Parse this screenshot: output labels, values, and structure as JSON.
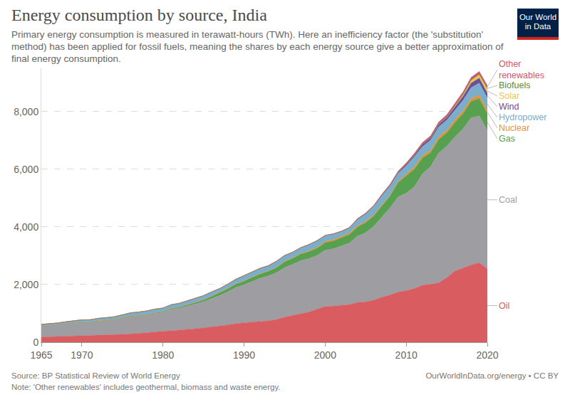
{
  "chart_data": {
    "type": "area",
    "title": "Energy consumption by source, India",
    "subtitle": "Primary energy consumption is measured in terawatt-hours (TWh). Here an inefficiency factor (the 'substitution' method) has been applied for fossil fuels, meaning the shares by each energy source give a better approximation of final energy consumption.",
    "source": "Source: BP Statistical Review of World Energy",
    "note": "Note: 'Other renewables' includes geothermal, biomass and waste energy.",
    "credit": "OurWorldInData.org/energy • CC BY",
    "logo": "Our World in Data",
    "stacked": true,
    "grid": true,
    "x": [
      1965,
      1966,
      1967,
      1968,
      1969,
      1970,
      1971,
      1972,
      1973,
      1974,
      1975,
      1976,
      1977,
      1978,
      1979,
      1980,
      1981,
      1982,
      1983,
      1984,
      1985,
      1986,
      1987,
      1988,
      1989,
      1990,
      1991,
      1992,
      1993,
      1994,
      1995,
      1996,
      1997,
      1998,
      1999,
      2000,
      2001,
      2002,
      2003,
      2004,
      2005,
      2006,
      2007,
      2008,
      2009,
      2010,
      2011,
      2012,
      2013,
      2014,
      2015,
      2016,
      2017,
      2018,
      2019,
      2020
    ],
    "xlim": [
      1965,
      2020
    ],
    "xticks": [
      1965,
      1970,
      1980,
      1990,
      2000,
      2010,
      2020
    ],
    "ylim": [
      0,
      9500
    ],
    "yticks": [
      0,
      {
        "value": 2000,
        "label": "2,000"
      },
      {
        "value": 4000,
        "label": "4,000"
      },
      {
        "value": 6000,
        "label": "6,000"
      },
      {
        "value": 8000,
        "label": "8,000"
      }
    ],
    "series": [
      {
        "name": "Oil",
        "color": "#d95c60",
        "values": [
          180,
          190,
          200,
          215,
          225,
          240,
          245,
          260,
          265,
          265,
          270,
          285,
          300,
          330,
          355,
          370,
          400,
          420,
          440,
          470,
          500,
          530,
          560,
          600,
          650,
          680,
          700,
          720,
          740,
          790,
          870,
          930,
          990,
          1050,
          1150,
          1240,
          1250,
          1280,
          1310,
          1380,
          1400,
          1460,
          1560,
          1640,
          1740,
          1790,
          1860,
          1980,
          2010,
          2060,
          2240,
          2470,
          2570,
          2680,
          2760,
          2540
        ]
      },
      {
        "name": "Coal",
        "color": "#9e9ea2",
        "values": [
          380,
          385,
          395,
          420,
          440,
          445,
          440,
          470,
          480,
          510,
          560,
          600,
          610,
          600,
          640,
          660,
          730,
          760,
          810,
          850,
          900,
          980,
          1060,
          1150,
          1250,
          1310,
          1410,
          1500,
          1560,
          1620,
          1720,
          1770,
          1840,
          1850,
          1860,
          1950,
          1990,
          2060,
          2130,
          2300,
          2400,
          2560,
          2780,
          3020,
          3300,
          3380,
          3530,
          3860,
          4080,
          4500,
          4560,
          4650,
          4830,
          5100,
          5090,
          4800
        ]
      },
      {
        "name": "Gas",
        "color": "#57a04f",
        "values": [
          3,
          4,
          5,
          6,
          7,
          8,
          9,
          10,
          11,
          12,
          14,
          15,
          18,
          19,
          20,
          22,
          28,
          35,
          45,
          55,
          65,
          80,
          95,
          105,
          115,
          125,
          135,
          150,
          160,
          175,
          200,
          210,
          230,
          240,
          250,
          265,
          270,
          280,
          300,
          320,
          350,
          360,
          390,
          410,
          500,
          600,
          610,
          550,
          480,
          470,
          460,
          500,
          530,
          570,
          600,
          590
        ]
      },
      {
        "name": "Nuclear",
        "color": "#e2933a",
        "values": [
          0,
          0,
          0,
          0,
          2,
          6,
          4,
          8,
          8,
          6,
          7,
          9,
          7,
          8,
          8,
          8,
          8,
          7,
          9,
          10,
          12,
          13,
          12,
          15,
          12,
          16,
          15,
          17,
          15,
          14,
          20,
          22,
          26,
          30,
          33,
          43,
          50,
          50,
          45,
          45,
          45,
          45,
          40,
          37,
          42,
          60,
          85,
          85,
          88,
          88,
          95,
          98,
          97,
          100,
          118,
          115
        ]
      },
      {
        "name": "Hydropower",
        "color": "#7aaecb",
        "values": [
          58,
          62,
          66,
          68,
          72,
          78,
          82,
          80,
          88,
          92,
          100,
          110,
          112,
          128,
          126,
          125,
          134,
          128,
          134,
          140,
          138,
          144,
          134,
          146,
          160,
          180,
          186,
          180,
          180,
          210,
          196,
          188,
          192,
          212,
          225,
          200,
          190,
          170,
          180,
          220,
          250,
          280,
          310,
          300,
          270,
          290,
          350,
          310,
          350,
          350,
          350,
          340,
          360,
          380,
          420,
          430
        ]
      },
      {
        "name": "Wind",
        "color": "#6b4d9c",
        "values": [
          0,
          0,
          0,
          0,
          0,
          0,
          0,
          0,
          0,
          0,
          0,
          0,
          0,
          0,
          0,
          0,
          0,
          0,
          0,
          0,
          0,
          0,
          0,
          0,
          0,
          0,
          0,
          0,
          0,
          1,
          2,
          3,
          3,
          3,
          4,
          4,
          5,
          5,
          7,
          10,
          16,
          20,
          30,
          35,
          42,
          50,
          60,
          75,
          75,
          85,
          85,
          110,
          140,
          155,
          170,
          160
        ]
      },
      {
        "name": "Solar",
        "color": "#e6c94a",
        "values": [
          0,
          0,
          0,
          0,
          0,
          0,
          0,
          0,
          0,
          0,
          0,
          0,
          0,
          0,
          0,
          0,
          0,
          0,
          0,
          0,
          0,
          0,
          0,
          0,
          0,
          0,
          0,
          0,
          0,
          0,
          0,
          0,
          0,
          0,
          0,
          0,
          0,
          0,
          0,
          0,
          0,
          0,
          0,
          0,
          0,
          0.3,
          1,
          5,
          9,
          12,
          18,
          35,
          60,
          100,
          125,
          160
        ]
      },
      {
        "name": "Biofuels",
        "color": "#5a8a3c",
        "values": [
          0,
          0,
          0,
          0,
          0,
          0,
          0,
          0,
          0,
          0,
          0,
          0,
          0,
          0,
          0,
          0,
          0,
          0,
          0,
          0,
          0,
          0,
          0,
          0,
          0,
          0,
          0,
          0,
          0,
          0,
          0,
          0,
          0,
          0,
          0,
          0,
          0,
          0.5,
          0.5,
          0.5,
          1,
          1,
          1,
          1,
          1,
          1,
          1,
          1,
          2,
          2,
          3,
          3,
          5,
          8,
          9,
          8
        ]
      },
      {
        "name": "Other renewables",
        "color": "#cc5870",
        "values": [
          0,
          0,
          0,
          0,
          0,
          0,
          0,
          0,
          0,
          0,
          0,
          0,
          0,
          0,
          0,
          0,
          0,
          0,
          0,
          0,
          0,
          0,
          0,
          0,
          0,
          1,
          1,
          2,
          2,
          2,
          3,
          4,
          4,
          5,
          5,
          6,
          7,
          10,
          12,
          15,
          20,
          25,
          30,
          35,
          40,
          45,
          55,
          60,
          65,
          70,
          78,
          85,
          90,
          95,
          100,
          100
        ]
      }
    ]
  }
}
